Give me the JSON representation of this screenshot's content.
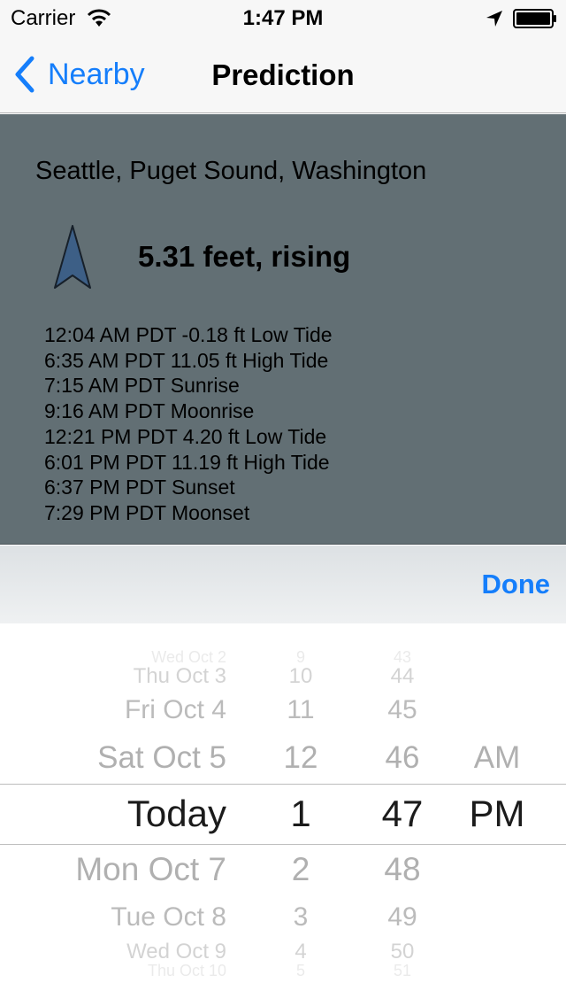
{
  "status": {
    "carrier": "Carrier",
    "time": "1:47 PM"
  },
  "nav": {
    "back_label": "Nearby",
    "title": "Prediction"
  },
  "station": {
    "name": "Seattle, Puget Sound, Washington"
  },
  "current": {
    "level": "5.31 feet, rising",
    "trend_icon": "up-arrow-icon"
  },
  "events": [
    "12:04 AM PDT -0.18 ft Low Tide",
    "6:35 AM PDT 11.05 ft High Tide",
    "7:15 AM PDT Sunrise",
    "9:16 AM PDT Moonrise",
    "12:21 PM PDT 4.20 ft Low Tide",
    "6:01 PM PDT 11.19 ft High Tide",
    "6:37 PM PDT Sunset",
    "7:29 PM PDT Moonset"
  ],
  "toolbar": {
    "done_label": "Done"
  },
  "picker": {
    "days": [
      "Wed Oct 2",
      "Thu Oct 3",
      "Fri Oct 4",
      "Sat Oct 5",
      "Today",
      "Mon Oct 7",
      "Tue Oct 8",
      "Wed Oct 9",
      "Thu Oct 10"
    ],
    "hours": [
      "9",
      "10",
      "11",
      "12",
      "1",
      "2",
      "3",
      "4",
      "5"
    ],
    "minutes": [
      "43",
      "44",
      "45",
      "46",
      "47",
      "48",
      "49",
      "50",
      "51"
    ],
    "ampm": [
      "AM",
      "PM"
    ],
    "selected": {
      "day": "Today",
      "hour": "1",
      "minute": "47",
      "ampm": "PM"
    }
  },
  "colors": {
    "accent": "#157efb",
    "panel": "#626f74",
    "arrow": "#3d5f86"
  }
}
